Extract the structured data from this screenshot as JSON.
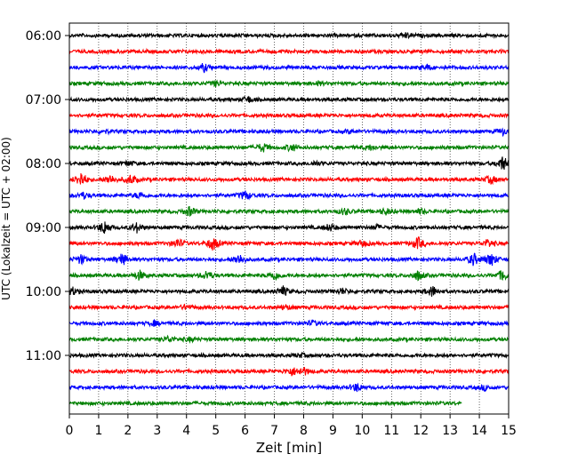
{
  "chart_data": {
    "type": "line",
    "subtype": "helicorder",
    "xlabel": "Zeit  [min]",
    "ylabel": "UTC (Lokalzeit = UTC + 02:00)",
    "xlim": [
      0,
      15
    ],
    "xticks": [
      0,
      1,
      2,
      3,
      4,
      5,
      6,
      7,
      8,
      9,
      10,
      11,
      12,
      13,
      14,
      15
    ],
    "xgrid": "dotted vertical at each minute",
    "y_tick_labels": [
      "06:00",
      "07:00",
      "08:00",
      "09:00",
      "10:00",
      "11:00"
    ],
    "row_interval_min": 15,
    "trace_colors": [
      "#000000",
      "#ff0000",
      "#0000ff",
      "#008000"
    ],
    "rows": [
      {
        "start": "06:00",
        "color": "#000000",
        "end_min": 15,
        "events": [
          [
            11.5,
            0.3
          ]
        ]
      },
      {
        "start": "06:15",
        "color": "#ff0000",
        "end_min": 15,
        "events": []
      },
      {
        "start": "06:30",
        "color": "#0000ff",
        "end_min": 15,
        "events": [
          [
            4.6,
            0.5
          ],
          [
            12.2,
            0.3
          ]
        ]
      },
      {
        "start": "06:45",
        "color": "#008000",
        "end_min": 15,
        "events": [
          [
            5.0,
            0.3
          ],
          [
            8.5,
            0.2
          ]
        ]
      },
      {
        "start": "07:00",
        "color": "#000000",
        "end_min": 15,
        "events": [
          [
            6.1,
            0.4
          ]
        ]
      },
      {
        "start": "07:15",
        "color": "#ff0000",
        "end_min": 15,
        "events": []
      },
      {
        "start": "07:30",
        "color": "#0000ff",
        "end_min": 15,
        "events": [
          [
            1.2,
            0.2
          ],
          [
            9.6,
            0.2
          ],
          [
            14.8,
            0.4
          ]
        ]
      },
      {
        "start": "07:45",
        "color": "#008000",
        "end_min": 15,
        "events": [
          [
            6.6,
            0.6
          ],
          [
            7.6,
            0.5
          ],
          [
            10.3,
            0.3
          ]
        ]
      },
      {
        "start": "08:00",
        "color": "#000000",
        "end_min": 15,
        "events": [
          [
            2.0,
            0.3
          ],
          [
            8.4,
            0.3
          ],
          [
            14.8,
            1.0
          ]
        ]
      },
      {
        "start": "08:15",
        "color": "#ff0000",
        "end_min": 15,
        "events": [
          [
            0.4,
            1.0
          ],
          [
            1.4,
            0.6
          ],
          [
            2.1,
            0.6
          ],
          [
            14.4,
            0.5
          ]
        ]
      },
      {
        "start": "08:30",
        "color": "#0000ff",
        "end_min": 15,
        "events": [
          [
            0.5,
            0.4
          ],
          [
            2.4,
            0.4
          ],
          [
            6.0,
            0.6
          ]
        ]
      },
      {
        "start": "08:45",
        "color": "#008000",
        "end_min": 15,
        "events": [
          [
            4.1,
            0.6
          ],
          [
            9.4,
            0.4
          ],
          [
            10.8,
            0.4
          ],
          [
            12.0,
            0.3
          ]
        ]
      },
      {
        "start": "09:00",
        "color": "#000000",
        "end_min": 15,
        "events": [
          [
            1.2,
            0.9
          ],
          [
            2.3,
            0.6
          ],
          [
            8.9,
            0.5
          ],
          [
            10.5,
            0.3
          ]
        ]
      },
      {
        "start": "09:15",
        "color": "#ff0000",
        "end_min": 15,
        "events": [
          [
            3.7,
            0.6
          ],
          [
            4.9,
            0.9
          ],
          [
            10.0,
            0.4
          ],
          [
            11.9,
            0.8
          ],
          [
            14.3,
            0.5
          ]
        ]
      },
      {
        "start": "09:30",
        "color": "#0000ff",
        "end_min": 15,
        "events": [
          [
            0.4,
            0.6
          ],
          [
            1.8,
            0.8
          ],
          [
            5.8,
            0.7
          ],
          [
            13.8,
            0.8
          ],
          [
            14.4,
            0.9
          ]
        ]
      },
      {
        "start": "09:45",
        "color": "#008000",
        "end_min": 15,
        "events": [
          [
            2.4,
            0.6
          ],
          [
            4.7,
            0.6
          ],
          [
            7.0,
            0.6
          ],
          [
            11.9,
            0.6
          ],
          [
            14.8,
            0.7
          ]
        ]
      },
      {
        "start": "10:00",
        "color": "#000000",
        "end_min": 15,
        "events": [
          [
            0.1,
            0.5
          ],
          [
            7.3,
            0.6
          ],
          [
            9.3,
            0.4
          ],
          [
            12.4,
            0.7
          ]
        ]
      },
      {
        "start": "10:15",
        "color": "#ff0000",
        "end_min": 15,
        "events": [
          [
            4.0,
            0.3
          ],
          [
            7.4,
            0.3
          ]
        ]
      },
      {
        "start": "10:30",
        "color": "#0000ff",
        "end_min": 15,
        "events": [
          [
            2.9,
            0.3
          ],
          [
            8.3,
            0.3
          ]
        ]
      },
      {
        "start": "10:45",
        "color": "#008000",
        "end_min": 15,
        "events": [
          [
            3.4,
            0.4
          ],
          [
            4.1,
            0.2
          ]
        ]
      },
      {
        "start": "11:00",
        "color": "#000000",
        "end_min": 15,
        "events": [
          [
            7.9,
            0.2
          ]
        ]
      },
      {
        "start": "11:15",
        "color": "#ff0000",
        "end_min": 15,
        "events": [
          [
            7.6,
            0.5
          ],
          [
            8.0,
            0.5
          ]
        ]
      },
      {
        "start": "11:30",
        "color": "#0000ff",
        "end_min": 15,
        "events": [
          [
            9.8,
            0.5
          ],
          [
            14.2,
            0.3
          ]
        ]
      },
      {
        "start": "11:45",
        "color": "#008000",
        "end_min": 13.4,
        "events": []
      }
    ]
  }
}
